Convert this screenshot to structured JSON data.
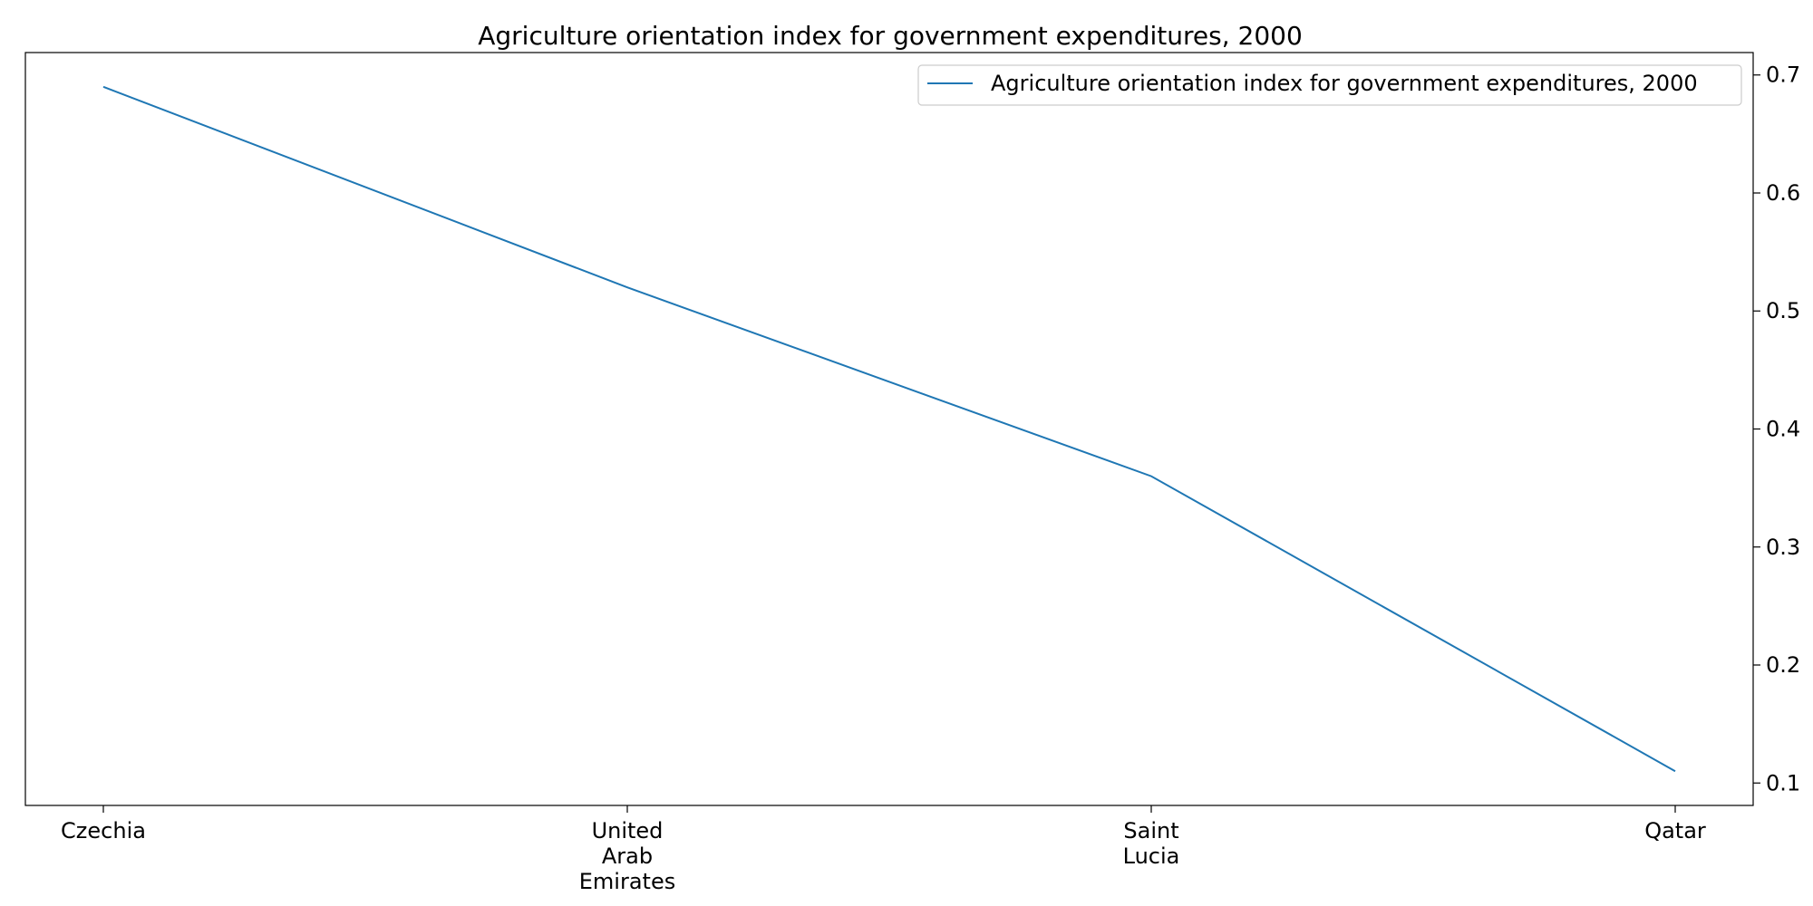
{
  "chart_data": {
    "type": "line",
    "title": "Agriculture orientation index for government expenditures, 2000",
    "xlabel": "",
    "ylabel": "",
    "categories": [
      [
        "Czechia"
      ],
      [
        "United",
        "Arab",
        "Emirates"
      ],
      [
        "Saint",
        "Lucia"
      ],
      [
        "Qatar"
      ]
    ],
    "series": [
      {
        "name": "Agriculture orientation index for government expenditures, 2000",
        "values": [
          0.69,
          0.52,
          0.36,
          0.11
        ],
        "color": "#1f77b4"
      }
    ],
    "yticks": [
      "0.1",
      "0.2",
      "0.3",
      "0.4",
      "0.5",
      "0.6",
      "0.7"
    ],
    "ylim": [
      0.081,
      0.719
    ],
    "y_axis_side": "right",
    "grid": false,
    "legend_position": "top-right"
  }
}
